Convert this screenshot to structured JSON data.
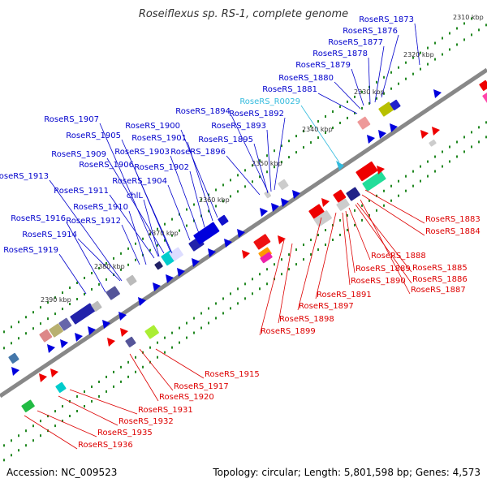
{
  "title": "Roseiflexus sp. RS-1, complete genome",
  "footer": {
    "accession": "Accession: NC_009523",
    "summary": "Topology: circular; Length: 5,801,598 bp; Genes: 4,573"
  },
  "colors": {
    "backbone": "#888888",
    "plus_strand": "#0000dd",
    "minus_strand": "#ee0000",
    "rna": "#33bbdd",
    "tick": "#228822",
    "label_plus": "#0000cc",
    "label_minus": "#dd0000"
  },
  "kbp_labels": [
    "2310 kbp",
    "2320 kbp",
    "2330 kbp",
    "2340 kbp",
    "2350 kbp",
    "2360 kbp",
    "2370 kbp",
    "2380 kbp",
    "2390 kbp"
  ],
  "plus_labels": [
    "RoseRS_1873",
    "RoseRS_1876",
    "RoseRS_1877",
    "RoseRS_1878",
    "RoseRS_1879",
    "RoseRS_1880",
    "RoseRS_1881",
    "RoseRS_1894",
    "RoseRS_1892",
    "RoseRS_1893",
    "RoseRS_1907",
    "RoseRS_1900",
    "RoseRS_1905",
    "RoseRS_1901",
    "RoseRS_1895",
    "RoseRS_1903",
    "RoseRS_1909",
    "RoseRS_1896",
    "RoseRS_1906",
    "RoseRS_1902",
    "RoseRS_1913",
    "RoseRS_1904",
    "RoseRS_1911",
    "chlL",
    "RoseRS_1910",
    "RoseRS_1916",
    "RoseRS_1912",
    "RoseRS_1914",
    "RoseRS_1919"
  ],
  "rna_labels": [
    "RoseRS_R0029"
  ],
  "minus_labels": [
    "RoseRS_1883",
    "RoseRS_1884",
    "RoseRS_1888",
    "RoseRS_1885",
    "RoseRS_1889",
    "RoseRS_1886",
    "RoseRS_1890",
    "RoseRS_1887",
    "RoseRS_1891",
    "RoseRS_1897",
    "RoseRS_1898",
    "RoseRS_1899",
    "RoseRS_1915",
    "RoseRS_1917",
    "RoseRS_1920",
    "RoseRS_1931",
    "RoseRS_1932",
    "RoseRS_1935",
    "RoseRS_1936"
  ]
}
